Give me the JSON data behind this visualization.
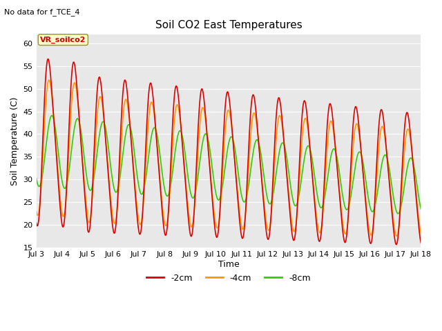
{
  "title": "Soil CO2 East Temperatures",
  "subtitle": "No data for f_TCE_4",
  "ylabel": "Soil Temperature (C)",
  "xlabel": "Time",
  "ylim": [
    15,
    62
  ],
  "yticks": [
    15,
    20,
    25,
    30,
    35,
    40,
    45,
    50,
    55,
    60
  ],
  "background_color": "#e8e8e8",
  "legend_label": "VR_soilco2",
  "series": {
    "-2cm": {
      "color": "#dd0000",
      "label": "-2cm"
    },
    "-4cm": {
      "color": "#ff9900",
      "label": "-4cm"
    },
    "-8cm": {
      "color": "#33cc00",
      "label": "-8cm"
    }
  },
  "x_ticks": [
    "Jul 3",
    "Jul 4",
    "Jul 5",
    "Jul 6",
    "Jul 7",
    "Jul 8",
    "Jul 9",
    "Jul 10",
    "Jul 11",
    "Jul 12",
    "Jul 13",
    "Jul 14",
    "Jul 15",
    "Jul 16",
    "Jul 17",
    "Jul 18"
  ],
  "num_days": 15,
  "points_per_day": 120,
  "base_temp": 36.5,
  "amp_2cm": 17.0,
  "amp_4cm": 14.5,
  "amp_8cm": 8.0,
  "phase_2cm": 1.57,
  "phase_4cm": 1.72,
  "phase_8cm": 2.25,
  "title_fontsize": 11,
  "axis_label_fontsize": 9,
  "tick_fontsize": 8,
  "subtitle_fontsize": 8,
  "legend_fontsize": 9
}
